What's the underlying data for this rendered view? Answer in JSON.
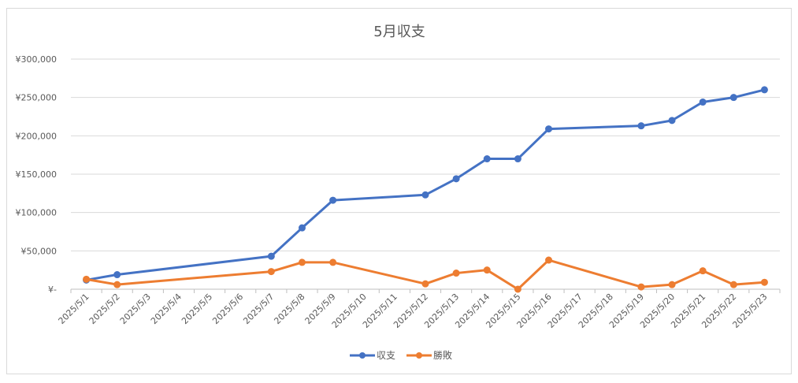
{
  "chart_data": {
    "type": "line",
    "title": "5月収支",
    "y_axis": {
      "min": 0,
      "max": 300000,
      "step": 50000,
      "tick_labels": [
        "¥-",
        "¥50,000",
        "¥100,000",
        "¥150,000",
        "¥200,000",
        "¥250,000",
        "¥300,000"
      ]
    },
    "x_axis": {
      "type": "date",
      "categories": [
        "2025/5/1",
        "2025/5/2",
        "2025/5/3",
        "2025/5/4",
        "2025/5/5",
        "2025/5/6",
        "2025/5/7",
        "2025/5/8",
        "2025/5/9",
        "2025/5/10",
        "2025/5/11",
        "2025/5/12",
        "2025/5/13",
        "2025/5/14",
        "2025/5/15",
        "2025/5/16",
        "2025/5/17",
        "2025/5/18",
        "2025/5/19",
        "2025/5/20",
        "2025/5/21",
        "2025/5/22",
        "2025/5/23"
      ]
    },
    "grid": "horizontal",
    "legend_position": "bottom",
    "series": [
      {
        "name": "収支",
        "color": "#4472c4",
        "points": [
          {
            "x": "2025/5/1",
            "y": 12000
          },
          {
            "x": "2025/5/2",
            "y": 19000
          },
          {
            "x": "2025/5/7",
            "y": 43000
          },
          {
            "x": "2025/5/8",
            "y": 80000
          },
          {
            "x": "2025/5/9",
            "y": 116000
          },
          {
            "x": "2025/5/12",
            "y": 123000
          },
          {
            "x": "2025/5/13",
            "y": 144000
          },
          {
            "x": "2025/5/14",
            "y": 170000
          },
          {
            "x": "2025/5/15",
            "y": 170000
          },
          {
            "x": "2025/5/16",
            "y": 209000
          },
          {
            "x": "2025/5/19",
            "y": 213000
          },
          {
            "x": "2025/5/20",
            "y": 220000
          },
          {
            "x": "2025/5/21",
            "y": 244000
          },
          {
            "x": "2025/5/22",
            "y": 250000
          },
          {
            "x": "2025/5/23",
            "y": 260000
          }
        ]
      },
      {
        "name": "勝敗",
        "color": "#ed7d31",
        "points": [
          {
            "x": "2025/5/1",
            "y": 13000
          },
          {
            "x": "2025/5/2",
            "y": 6000
          },
          {
            "x": "2025/5/7",
            "y": 23000
          },
          {
            "x": "2025/5/8",
            "y": 35000
          },
          {
            "x": "2025/5/9",
            "y": 35000
          },
          {
            "x": "2025/5/12",
            "y": 7000
          },
          {
            "x": "2025/5/13",
            "y": 21000
          },
          {
            "x": "2025/5/14",
            "y": 25000
          },
          {
            "x": "2025/5/15",
            "y": 0
          },
          {
            "x": "2025/5/16",
            "y": 38000
          },
          {
            "x": "2025/5/19",
            "y": 3000
          },
          {
            "x": "2025/5/20",
            "y": 6000
          },
          {
            "x": "2025/5/21",
            "y": 24000
          },
          {
            "x": "2025/5/22",
            "y": 6000
          },
          {
            "x": "2025/5/23",
            "y": 9000
          }
        ]
      }
    ]
  }
}
